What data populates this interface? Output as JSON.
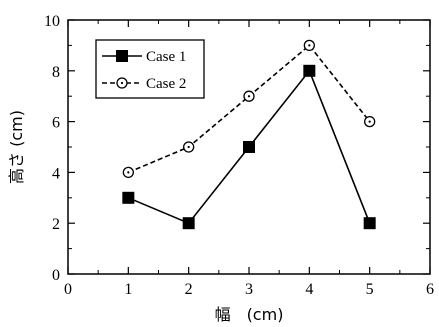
{
  "chart_data": {
    "type": "line",
    "xlabel": "幅　(cm)",
    "ylabel": "高さ (cm)",
    "xlim": [
      0,
      6
    ],
    "ylim": [
      0,
      10
    ],
    "xticks": [
      0,
      1,
      2,
      3,
      4,
      5,
      6
    ],
    "yticks": [
      0,
      2,
      4,
      6,
      8,
      10
    ],
    "grid": false,
    "legend_position": "top-left",
    "series": [
      {
        "name": "Case 1",
        "x": [
          1,
          2,
          3,
          4,
          5
        ],
        "y": [
          3,
          2,
          5,
          8,
          2
        ],
        "line_style": "solid",
        "marker": "filled-square",
        "color": "#000000"
      },
      {
        "name": "Case 2",
        "x": [
          1,
          2,
          3,
          4,
          5
        ],
        "y": [
          4,
          5,
          7,
          9,
          6
        ],
        "line_style": "dashed",
        "marker": "open-circle-dot",
        "color": "#000000"
      }
    ]
  }
}
